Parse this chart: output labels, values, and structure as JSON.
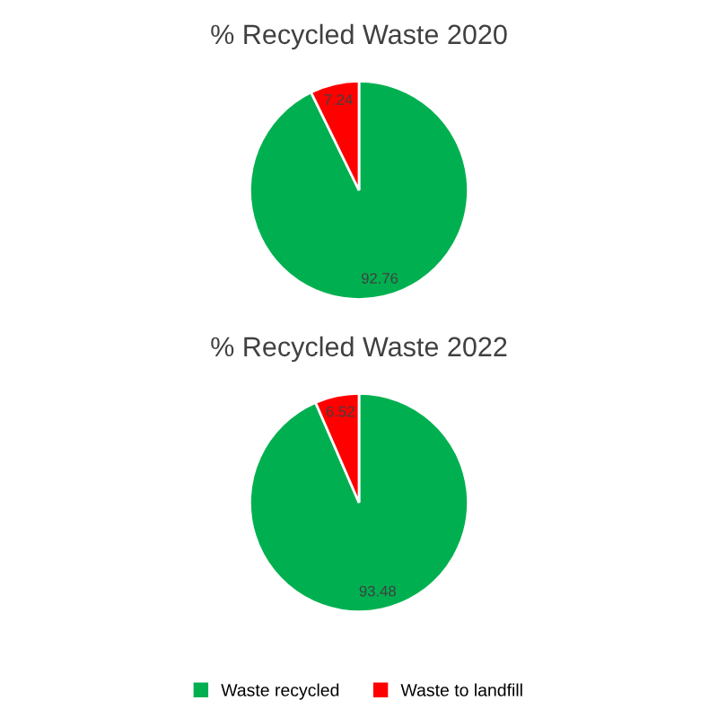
{
  "chart_data": [
    {
      "type": "pie",
      "title": "% Recycled Waste 2020",
      "categories": [
        "Waste recycled",
        "Waste to landfill"
      ],
      "values": [
        92.76,
        7.24
      ],
      "colors": [
        "#00b050",
        "#ff0000"
      ],
      "data_labels": true,
      "legend": "bottom"
    },
    {
      "type": "pie",
      "title": "% Recycled Waste 2022",
      "categories": [
        null,
        null
      ],
      "values": [
        93.48,
        6.52
      ],
      "colors": [
        "#00b050",
        "#ff0000"
      ],
      "data_labels": true,
      "legend": false
    }
  ]
}
